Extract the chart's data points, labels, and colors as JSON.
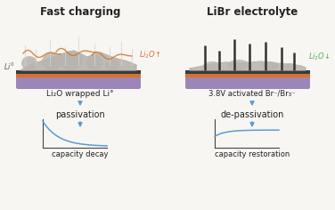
{
  "title_left": "Fast charging",
  "title_right": "LiBr electrolyte",
  "label_left": "Li₂O wrapped Li°",
  "label_right": "3.8V activated Br⁻/Br₃⁻",
  "text_pass": "passivation",
  "text_depass": "de-passivation",
  "text_decay": "capacity decay",
  "text_restore": "capacity restoration",
  "bg_color": "#f7f6f3",
  "arrow_color": "#5b9bd5",
  "orange_color": "#d4722a",
  "orange_light": "#e8956a",
  "grey_blob": "#b8b5b0",
  "grey_dark": "#9a9590",
  "purple_color": "#9e85b8",
  "dark_bar": "#555555",
  "li2o_left_color": "#d4722a",
  "li2o_right_color": "#5aaa5a",
  "curve_color": "#5b9bd5",
  "spike_white": "#e8e8e0",
  "needle_color": "#333333"
}
